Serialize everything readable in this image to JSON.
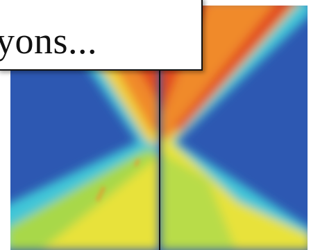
{
  "caption": {
    "text": "yons..."
  }
}
